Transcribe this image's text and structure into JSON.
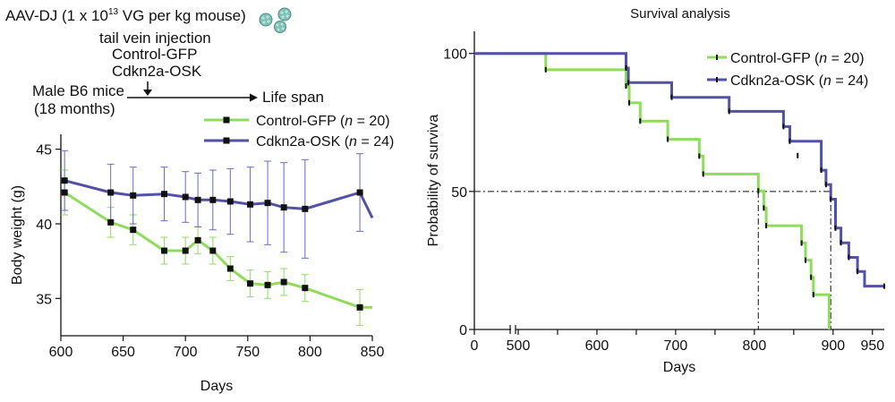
{
  "schematic": {
    "vector_prefix": "AAV-DJ (1 x 10",
    "vector_exp": "13",
    "vector_suffix": " VG per kg mouse)",
    "virus_icon": "virus-particle-icon",
    "injection": "tail vein injection",
    "group1": "Control-GFP",
    "group2": "Cdkn2a-OSK",
    "mice_line1": "Male B6 mice",
    "mice_line2": "(18 months)",
    "endpoint": "Life span"
  },
  "colors": {
    "control": "#8fdc5c",
    "osk": "#5151a8",
    "axis": "#111111",
    "errbar_green": "#8fdc5c",
    "errbar_blue": "#6b6bc0"
  },
  "chart_data": [
    {
      "type": "line",
      "xlabel": "Days",
      "ylabel": "Body weight (g)",
      "xlim": [
        600,
        850
      ],
      "ylim": [
        32.5,
        46
      ],
      "xticks": [
        600,
        650,
        700,
        750,
        800,
        850
      ],
      "yticks": [
        35,
        40,
        45
      ],
      "legend_position": "top-right",
      "series": [
        {
          "name": "Control-GFP",
          "n_label": "n = 20",
          "color": "#8fdc5c",
          "x": [
            603,
            640,
            658,
            683,
            700,
            710,
            722,
            736,
            752,
            766,
            779,
            796,
            840,
            850
          ],
          "y": [
            42.1,
            40.1,
            39.6,
            38.2,
            38.2,
            38.9,
            38.2,
            37.0,
            36.0,
            35.9,
            36.1,
            35.7,
            34.4,
            34.4
          ],
          "err": [
            1.5,
            1.0,
            1.0,
            0.9,
            0.9,
            0.9,
            0.9,
            0.8,
            0.9,
            0.9,
            0.9,
            0.9,
            1.2,
            null
          ],
          "markers": [
            true,
            true,
            true,
            true,
            true,
            true,
            true,
            true,
            true,
            true,
            true,
            true,
            true,
            false
          ]
        },
        {
          "name": "Cdkn2a-OSK",
          "n_label": "n = 24",
          "color": "#5151a8",
          "x": [
            603,
            640,
            658,
            683,
            700,
            710,
            722,
            736,
            752,
            766,
            779,
            796,
            840,
            850
          ],
          "y": [
            42.9,
            42.1,
            41.9,
            42.0,
            41.8,
            41.6,
            41.6,
            41.5,
            41.3,
            41.4,
            41.1,
            41.0,
            42.1,
            40.4
          ],
          "err": [
            2.0,
            1.9,
            1.9,
            1.8,
            1.7,
            1.8,
            2.0,
            2.2,
            2.5,
            2.8,
            3.0,
            3.3,
            2.6,
            null
          ],
          "markers": [
            true,
            true,
            true,
            true,
            true,
            true,
            true,
            true,
            true,
            true,
            true,
            true,
            true,
            false
          ]
        }
      ]
    },
    {
      "type": "line",
      "title": "Survival analysis",
      "xlabel": "Days",
      "ylabel": "Probability of surviva",
      "xlim": [
        0,
        965
      ],
      "ylim": [
        0,
        108
      ],
      "x_axis_break": true,
      "xticks": [
        0,
        500,
        550,
        600,
        650,
        700,
        750,
        800,
        850,
        900,
        950
      ],
      "xtick_labels": [
        "0",
        "500",
        "",
        "600",
        "",
        "700",
        "",
        "800",
        "",
        "900",
        "950"
      ],
      "yticks": [
        0,
        50,
        100
      ],
      "legend_position": "top-right",
      "median_line_y": 50,
      "median_days": [
        805,
        897
      ],
      "series": [
        {
          "name": "Control-GFP",
          "n_label": "n = 20",
          "color": "#8fdc5c",
          "step_times": [
            0,
            535,
            637,
            641,
            655,
            690,
            730,
            735,
            805,
            812,
            815,
            860,
            865,
            872,
            875,
            895
          ],
          "step_values": [
            100,
            94.1,
            88.2,
            82.1,
            75.5,
            68.9,
            62.8,
            56.3,
            50.2,
            44.0,
            37.6,
            31.3,
            25.1,
            18.9,
            12.6,
            0
          ],
          "censor_times": [
            535,
            637,
            641,
            655,
            690,
            730,
            735,
            805,
            812,
            815,
            860,
            865,
            872,
            875
          ],
          "censor_values": [
            94.1,
            88.2,
            82.1,
            75.5,
            68.9,
            62.8,
            56.3,
            50.2,
            44.0,
            37.6,
            31.3,
            25.1,
            18.9,
            12.6
          ]
        },
        {
          "name": "Cdkn2a-OSK",
          "n_label": "n = 24",
          "color": "#5151a8",
          "step_times": [
            0,
            637,
            640,
            695,
            768,
            837,
            845,
            885,
            891,
            897,
            903,
            910,
            920,
            931,
            940,
            965
          ],
          "step_values": [
            100,
            94.7,
            89.4,
            84.1,
            79.0,
            73.5,
            68.2,
            57.7,
            52.5,
            47.2,
            36.7,
            31.4,
            26.1,
            21.0,
            15.7,
            15.7
          ],
          "censor_times": [
            637,
            640,
            695,
            768,
            837,
            845,
            855,
            885,
            891,
            897,
            903,
            910,
            920,
            931,
            965
          ],
          "censor_values": [
            94.7,
            89.4,
            84.1,
            79.0,
            73.5,
            68.2,
            63.0,
            57.7,
            52.5,
            47.2,
            36.7,
            31.4,
            26.1,
            21.0,
            15.7
          ]
        }
      ]
    }
  ]
}
